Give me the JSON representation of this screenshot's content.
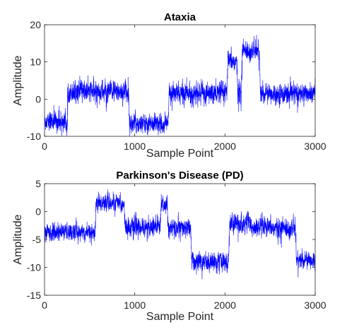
{
  "chart_data": [
    {
      "type": "line",
      "title": "Ataxia",
      "xlabel": "Sample Point",
      "ylabel": "Amplitude",
      "xlim": [
        0,
        3000
      ],
      "ylim": [
        -10,
        20
      ],
      "xticks": [
        0,
        1000,
        2000,
        3000
      ],
      "yticks": [
        -10,
        0,
        10,
        20
      ],
      "color": "#0000ff",
      "grid": false,
      "legend": "none",
      "segments": [
        {
          "x_start": 0,
          "x_end": 250,
          "level": -6,
          "noise": 1.2
        },
        {
          "x_start": 250,
          "x_end": 300,
          "level": 2,
          "noise": 1.2
        },
        {
          "x_start": 300,
          "x_end": 930,
          "level": 2,
          "noise": 1.3
        },
        {
          "x_start": 930,
          "x_end": 1370,
          "level": -6.5,
          "noise": 1.2
        },
        {
          "x_start": 1370,
          "x_end": 2020,
          "level": 1.5,
          "noise": 1.3
        },
        {
          "x_start": 2020,
          "x_end": 2130,
          "level": 10,
          "noise": 1.3
        },
        {
          "x_start": 2130,
          "x_end": 2180,
          "level": 2,
          "noise": 1.5
        },
        {
          "x_start": 2180,
          "x_end": 2380,
          "level": 13,
          "noise": 1.2
        },
        {
          "x_start": 2380,
          "x_end": 3000,
          "level": 1.5,
          "noise": 1.2
        }
      ]
    },
    {
      "type": "line",
      "title": "Parkinson's Disease (PD)",
      "xlabel": "Sample Point",
      "ylabel": "Amplitude",
      "xlim": [
        0,
        3000
      ],
      "ylim": [
        -15,
        5
      ],
      "xticks": [
        0,
        1000,
        2000,
        3000
      ],
      "yticks": [
        -15,
        -10,
        -5,
        0,
        5
      ],
      "color": "#0000ff",
      "grid": false,
      "legend": "none",
      "segments": [
        {
          "x_start": 0,
          "x_end": 560,
          "level": -3.7,
          "noise": 0.7
        },
        {
          "x_start": 560,
          "x_end": 880,
          "level": 1.5,
          "noise": 0.7
        },
        {
          "x_start": 880,
          "x_end": 1280,
          "level": -2.8,
          "noise": 0.8
        },
        {
          "x_start": 1280,
          "x_end": 1360,
          "level": 1.2,
          "noise": 0.7
        },
        {
          "x_start": 1360,
          "x_end": 1620,
          "level": -3,
          "noise": 0.8
        },
        {
          "x_start": 1620,
          "x_end": 2040,
          "level": -9,
          "noise": 0.8
        },
        {
          "x_start": 2040,
          "x_end": 2280,
          "level": -2,
          "noise": 0.8
        },
        {
          "x_start": 2280,
          "x_end": 2780,
          "level": -3,
          "noise": 0.8
        },
        {
          "x_start": 2780,
          "x_end": 3000,
          "level": -8.7,
          "noise": 0.7
        }
      ]
    }
  ]
}
